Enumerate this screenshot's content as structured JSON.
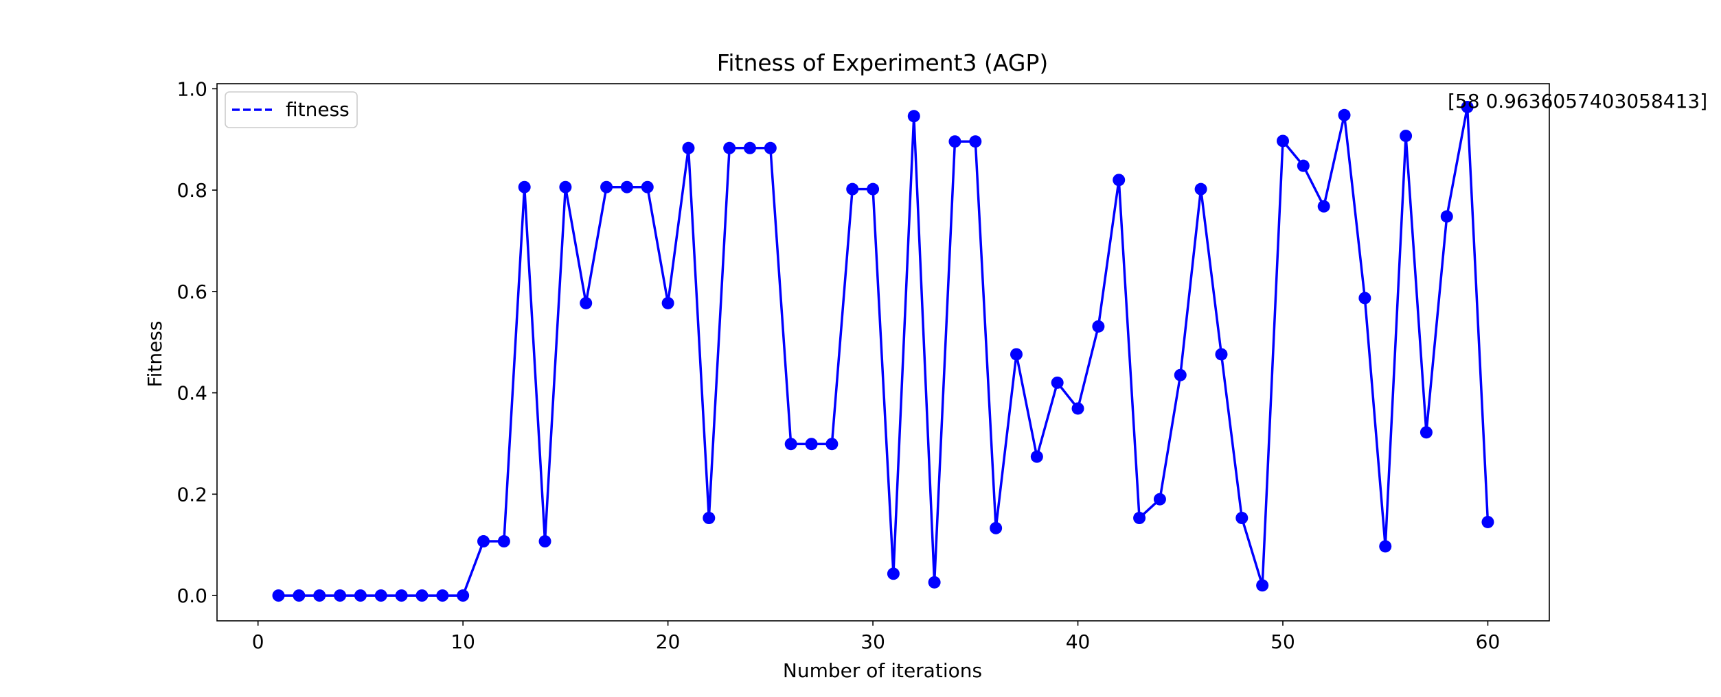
{
  "chart_data": {
    "type": "line",
    "title": "Fitness of Experiment3 (AGP)",
    "xlabel": "Number of iterations",
    "ylabel": "Fitness",
    "xlim": [
      -2,
      63
    ],
    "ylim": [
      -0.05,
      1.01
    ],
    "xticks": [
      0,
      10,
      20,
      30,
      40,
      50,
      60
    ],
    "yticks": [
      0.0,
      0.2,
      0.4,
      0.6,
      0.8,
      1.0
    ],
    "xtick_labels": [
      "0",
      "10",
      "20",
      "30",
      "40",
      "50",
      "60"
    ],
    "ytick_labels": [
      "0.0",
      "0.2",
      "0.4",
      "0.6",
      "0.8",
      "1.0"
    ],
    "grid": false,
    "legend": {
      "placement": "upper-left",
      "entries": [
        "fitness"
      ],
      "line_style": "dashed"
    },
    "annotation": {
      "text": "[58 0.9636057403058413]",
      "x": 58,
      "y": 0.9636057403058413
    },
    "series": [
      {
        "name": "fitness",
        "color": "#0000ff",
        "marker": "circle",
        "x": [
          1,
          2,
          3,
          4,
          5,
          6,
          7,
          8,
          9,
          10,
          11,
          12,
          13,
          14,
          15,
          16,
          17,
          18,
          19,
          20,
          21,
          22,
          23,
          24,
          25,
          26,
          27,
          28,
          29,
          30,
          31,
          32,
          33,
          34,
          35,
          36,
          37,
          38,
          39,
          40,
          41,
          42,
          43,
          44,
          45,
          46,
          47,
          48,
          49,
          50,
          51,
          52,
          53,
          54,
          55,
          56,
          57,
          58,
          59,
          60
        ],
        "y": [
          0.0,
          0.0,
          0.0,
          0.0,
          0.0,
          0.0,
          0.0,
          0.0,
          0.0,
          0.0,
          0.107,
          0.107,
          0.806,
          0.107,
          0.806,
          0.577,
          0.806,
          0.806,
          0.806,
          0.577,
          0.883,
          0.153,
          0.883,
          0.883,
          0.883,
          0.299,
          0.299,
          0.299,
          0.802,
          0.802,
          0.043,
          0.946,
          0.026,
          0.896,
          0.896,
          0.133,
          0.476,
          0.274,
          0.42,
          0.369,
          0.531,
          0.82,
          0.153,
          0.19,
          0.435,
          0.802,
          0.476,
          0.153,
          0.02,
          0.897,
          0.848,
          0.768,
          0.948,
          0.587,
          0.097,
          0.907,
          0.322,
          0.748,
          0.964,
          0.145
        ]
      }
    ]
  }
}
